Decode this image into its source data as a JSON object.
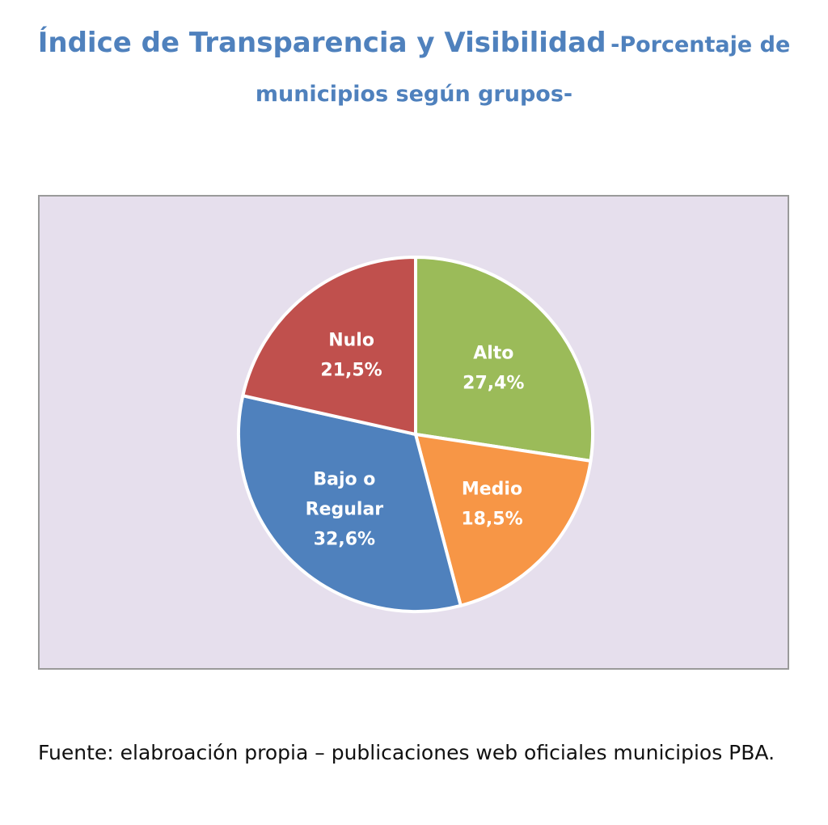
{
  "title": {
    "main": "Índice de Transparencia y Visibilidad",
    "sub_part1": "-Porcentaje de",
    "sub_part2": "municipios según grupos-"
  },
  "chart_data": {
    "type": "pie",
    "slices": [
      {
        "label_lines": [
          "Alto"
        ],
        "value": 27.4,
        "value_label": "27,4%",
        "color": "#9bbb59"
      },
      {
        "label_lines": [
          "Medio"
        ],
        "value": 18.5,
        "value_label": "18,5%",
        "color": "#f79646"
      },
      {
        "label_lines": [
          "Bajo o",
          "Regular"
        ],
        "value": 32.6,
        "value_label": "32,6%",
        "color": "#4f81bd"
      },
      {
        "label_lines": [
          "Nulo"
        ],
        "value": 21.5,
        "value_label": "21,5%",
        "color": "#c0504d"
      }
    ],
    "start_angle_deg": 0,
    "direction": "clockwise",
    "background_color": "#e6dfed"
  },
  "source": {
    "text": "Fuente: elabroación propia – publicaciones web oficiales municipios PBA."
  }
}
